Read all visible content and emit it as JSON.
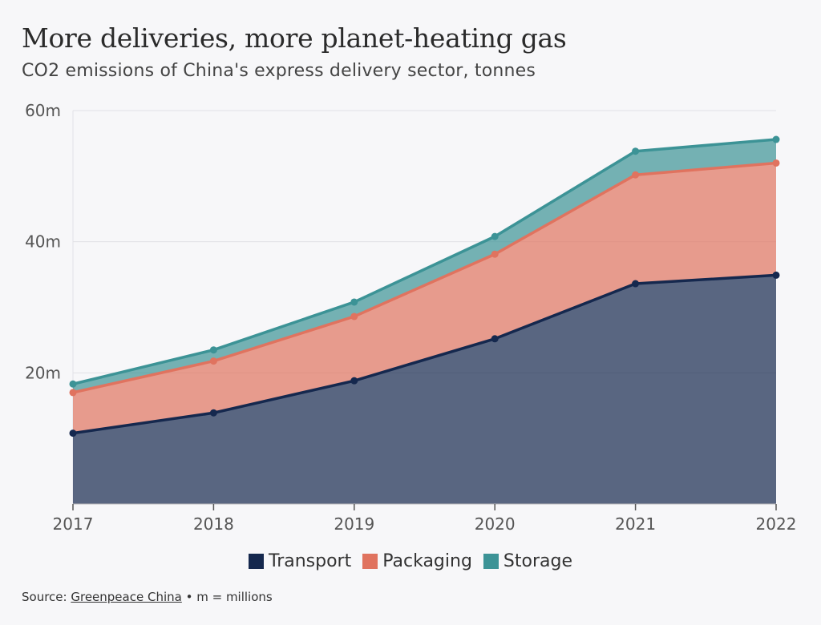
{
  "header": {
    "title": "More deliveries, more planet-heating gas",
    "subtitle": "CO2 emissions of China's express delivery sector, tonnes"
  },
  "footer": {
    "source_prefix": "Source:",
    "source_link": "Greenpeace China",
    "note": "• m = millions"
  },
  "colors": {
    "transport": "#15284e",
    "packaging": "#e0735f",
    "storage": "#3c9396",
    "grid": "#e2e2e6",
    "background": "#f7f7f9"
  },
  "chart_data": {
    "type": "area",
    "stacked": true,
    "x": [
      "2017",
      "2018",
      "2019",
      "2020",
      "2021",
      "2022"
    ],
    "series": [
      {
        "name": "Transport",
        "values": [
          10.8,
          13.9,
          18.8,
          25.2,
          33.6,
          34.9
        ]
      },
      {
        "name": "Packaging",
        "values": [
          6.2,
          7.9,
          9.8,
          12.9,
          16.6,
          17.1
        ]
      },
      {
        "name": "Storage",
        "values": [
          1.3,
          1.7,
          2.2,
          2.7,
          3.6,
          3.6
        ]
      }
    ],
    "ylim": [
      0,
      60
    ],
    "yticks": [
      20,
      40,
      60
    ],
    "ytick_labels": [
      "20m",
      "40m",
      "60m"
    ],
    "grid": true,
    "legend_position": "bottom"
  }
}
